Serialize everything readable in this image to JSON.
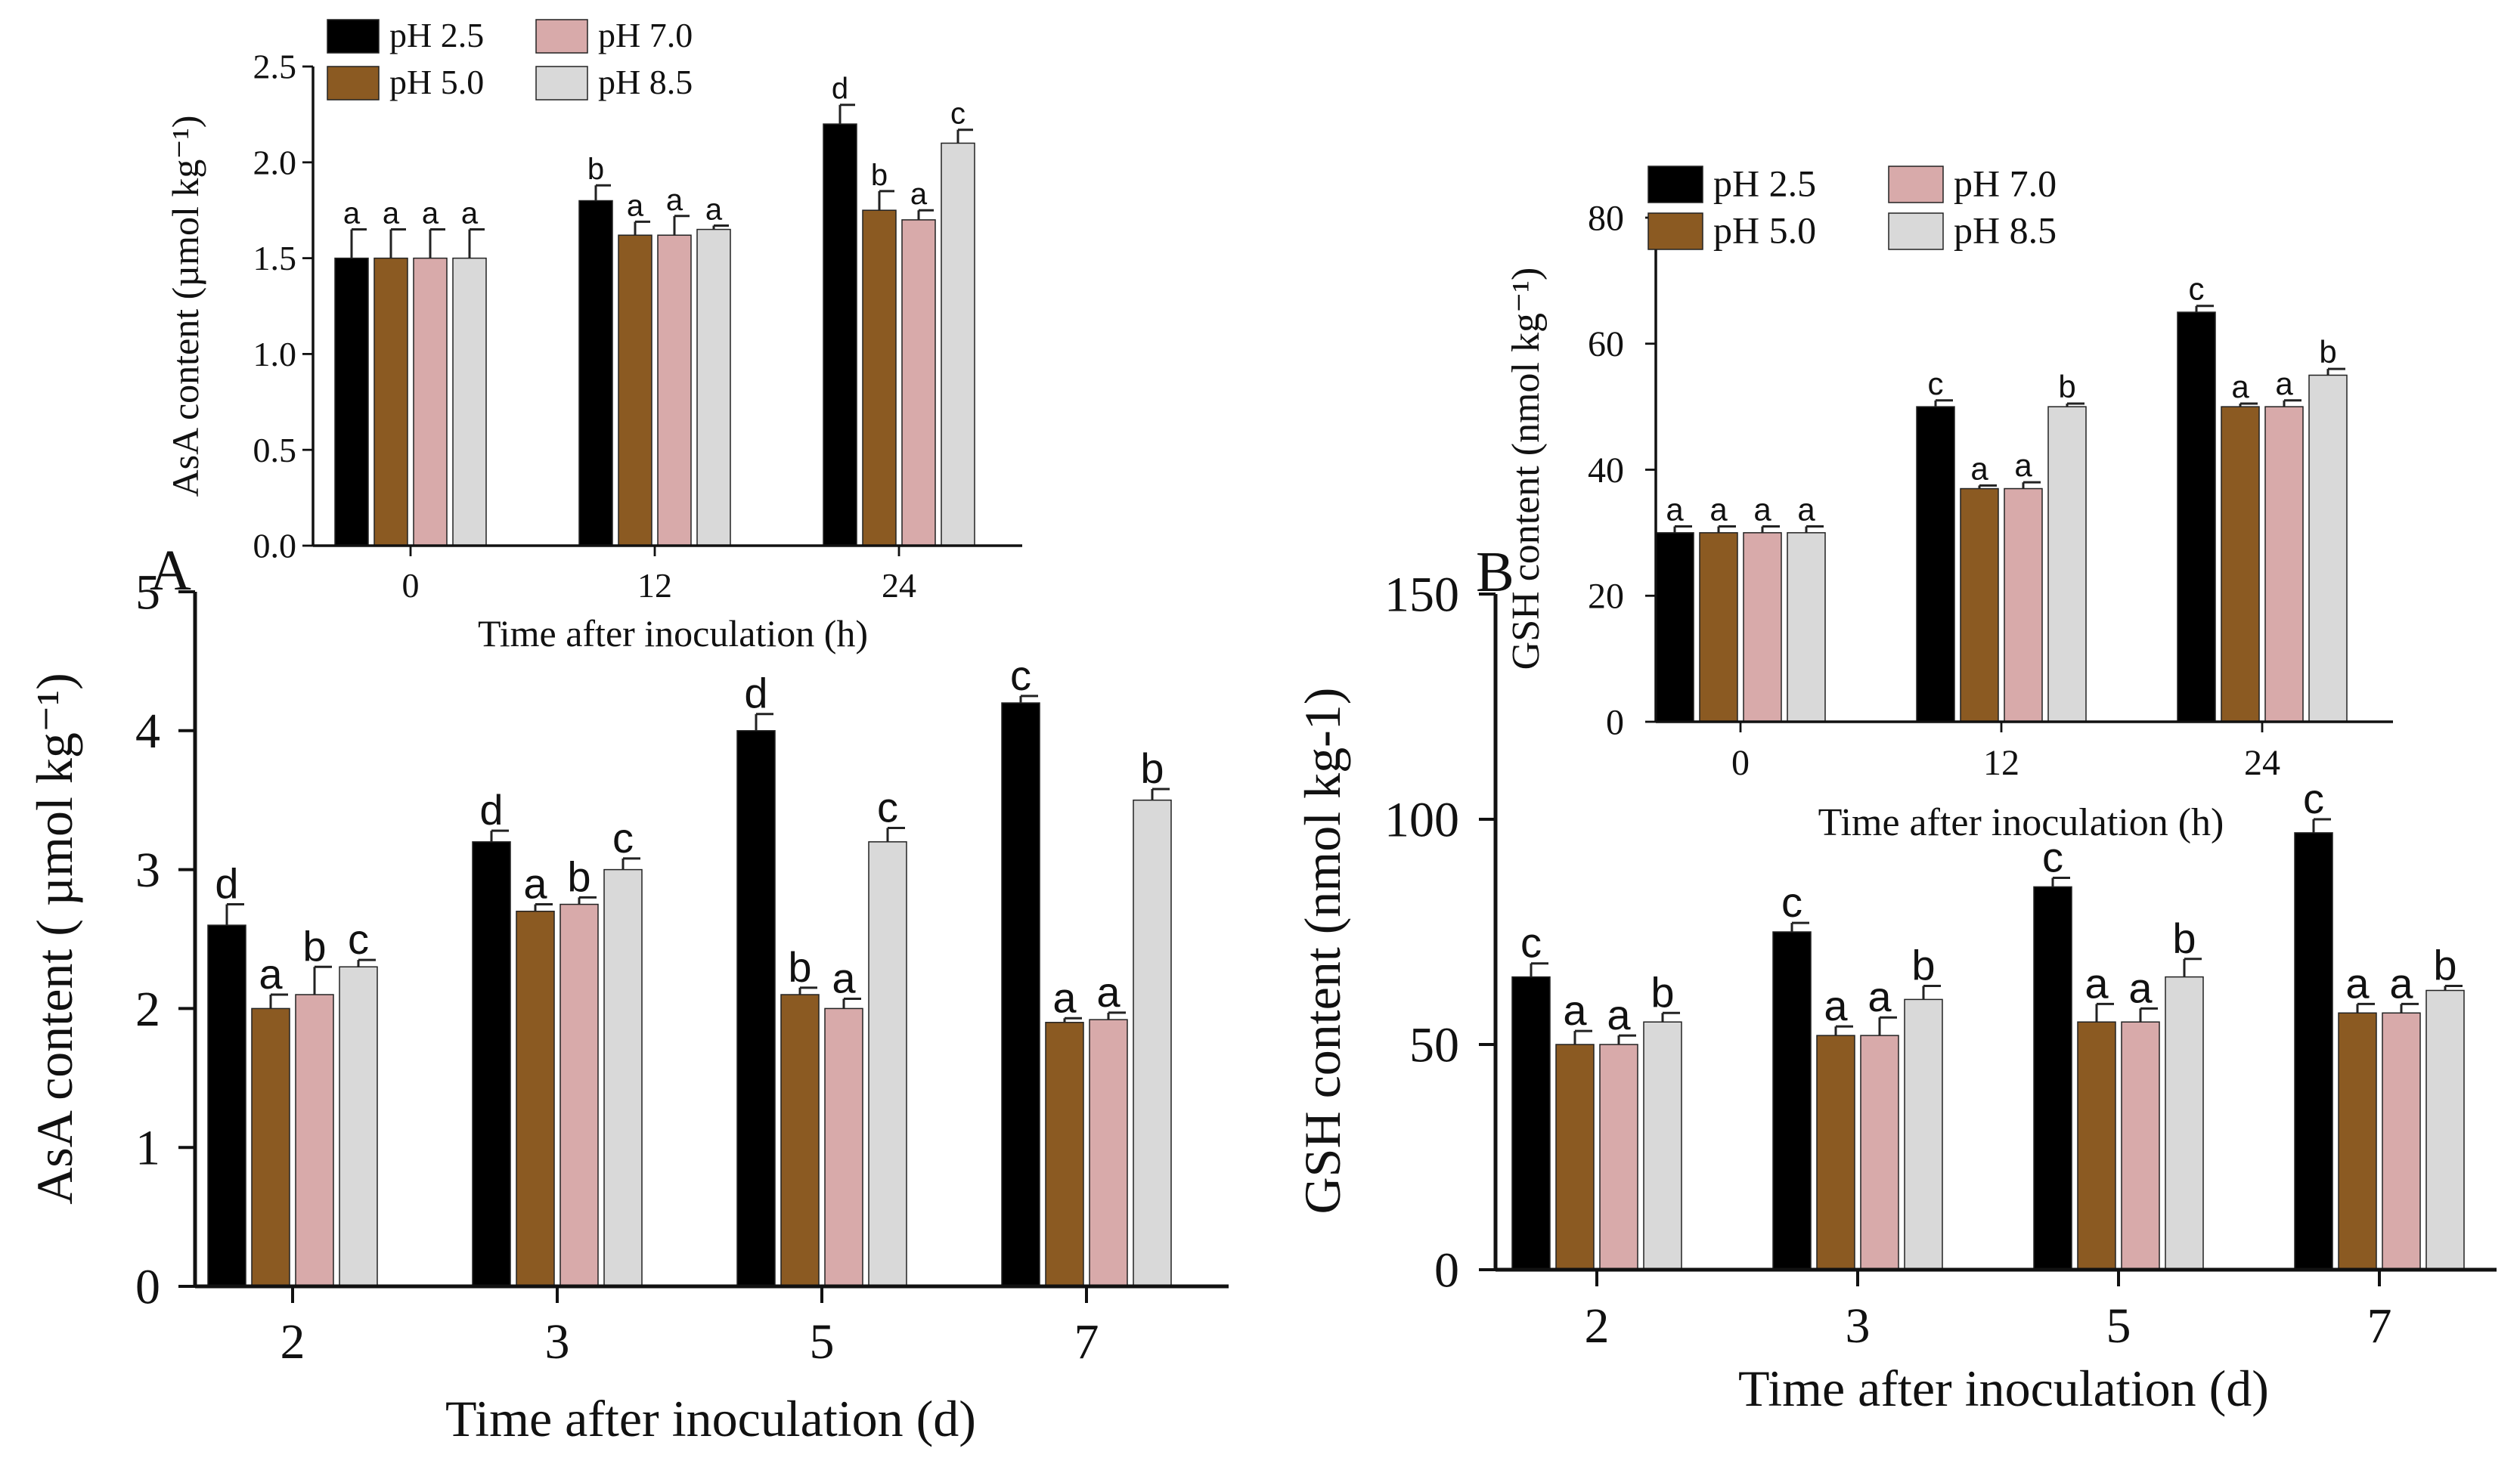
{
  "chart_data": [
    {
      "id": "A-main",
      "type": "bar",
      "panel_label": "A",
      "xlabel": "Time after inoculation (d)",
      "ylabel": "AsA content ( µmol kg⁻¹)",
      "categories": [
        "2",
        "3",
        "5",
        "7"
      ],
      "ylim": [
        0,
        5
      ],
      "yticks": [
        0,
        1,
        2,
        3,
        4,
        5
      ],
      "series": [
        {
          "name": "pH 2.5",
          "color": "#000000",
          "values": [
            2.6,
            3.2,
            4.0,
            4.2
          ],
          "errors": [
            0.15,
            0.08,
            0.12,
            0.05
          ],
          "letters": [
            "d",
            "d",
            "d",
            "c"
          ]
        },
        {
          "name": "pH 5.0",
          "color": "#8b5a22",
          "values": [
            2.0,
            2.7,
            2.1,
            1.9
          ],
          "errors": [
            0.1,
            0.05,
            0.05,
            0.03
          ],
          "letters": [
            "a",
            "a",
            "b",
            "a"
          ]
        },
        {
          "name": "pH 7.0",
          "color": "#d8aaaa",
          "values": [
            2.1,
            2.75,
            2.0,
            1.92
          ],
          "errors": [
            0.2,
            0.05,
            0.07,
            0.05
          ],
          "letters": [
            "b",
            "b",
            "a",
            "a"
          ]
        },
        {
          "name": "pH 8.5",
          "color": "#d9d9d9",
          "values": [
            2.3,
            3.0,
            3.2,
            3.5
          ],
          "errors": [
            0.05,
            0.08,
            0.1,
            0.08
          ],
          "letters": [
            "c",
            "c",
            "c",
            "b"
          ]
        }
      ]
    },
    {
      "id": "A-inset",
      "type": "bar",
      "xlabel": "Time after inoculation (h)",
      "ylabel": "AsA content (µmol kg⁻¹)",
      "categories": [
        "0",
        "12",
        "24"
      ],
      "ylim": [
        0,
        2.5
      ],
      "yticks": [
        "0.0",
        "0.5",
        "1.0",
        "1.5",
        "2.0",
        "2.5"
      ],
      "legend": "top-left",
      "series": [
        {
          "name": "pH 2.5",
          "color": "#000000",
          "values": [
            1.5,
            1.8,
            2.2
          ],
          "errors": [
            0.15,
            0.08,
            0.1
          ],
          "letters": [
            "a",
            "b",
            "d"
          ]
        },
        {
          "name": "pH 5.0",
          "color": "#8b5a22",
          "values": [
            1.5,
            1.62,
            1.75
          ],
          "errors": [
            0.15,
            0.07,
            0.1
          ],
          "letters": [
            "a",
            "a",
            "b"
          ]
        },
        {
          "name": "pH 7.0",
          "color": "#d8aaaa",
          "values": [
            1.5,
            1.62,
            1.7
          ],
          "errors": [
            0.15,
            0.1,
            0.05
          ],
          "letters": [
            "a",
            "a",
            "a"
          ]
        },
        {
          "name": "pH 8.5",
          "color": "#d9d9d9",
          "values": [
            1.5,
            1.65,
            2.1
          ],
          "errors": [
            0.15,
            0.02,
            0.07
          ],
          "letters": [
            "a",
            "a",
            "c"
          ]
        }
      ]
    },
    {
      "id": "B-main",
      "type": "bar",
      "panel_label": "B",
      "xlabel": "Time after inoculation (d)",
      "ylabel": "GSH content (nmol kg-1)",
      "categories": [
        "2",
        "3",
        "5",
        "7"
      ],
      "ylim": [
        0,
        150
      ],
      "yticks": [
        0,
        50,
        100,
        150
      ],
      "series": [
        {
          "name": "pH 2.5",
          "color": "#000000",
          "values": [
            65,
            75,
            85,
            97
          ],
          "errors": [
            3,
            2,
            2,
            3
          ],
          "letters": [
            "c",
            "c",
            "c",
            "c"
          ]
        },
        {
          "name": "pH 5.0",
          "color": "#8b5a22",
          "values": [
            50,
            52,
            55,
            57
          ],
          "errors": [
            3,
            2,
            4,
            2
          ],
          "letters": [
            "a",
            "a",
            "a",
            "a"
          ]
        },
        {
          "name": "pH 7.0",
          "color": "#d8aaaa",
          "values": [
            50,
            52,
            55,
            57
          ],
          "errors": [
            2,
            4,
            3,
            2
          ],
          "letters": [
            "a",
            "a",
            "a",
            "a"
          ]
        },
        {
          "name": "pH 8.5",
          "color": "#d9d9d9",
          "values": [
            55,
            60,
            65,
            62
          ],
          "errors": [
            2,
            3,
            4,
            1
          ],
          "letters": [
            "b",
            "b",
            "b",
            "b"
          ]
        }
      ]
    },
    {
      "id": "B-inset",
      "type": "bar",
      "xlabel": "Time after inoculation (h)",
      "ylabel": "GSH content (nmol kg⁻¹)",
      "categories": [
        "0",
        "12",
        "24"
      ],
      "ylim": [
        0,
        80
      ],
      "yticks": [
        0,
        20,
        40,
        60,
        80
      ],
      "legend": "top-left",
      "series": [
        {
          "name": "pH 2.5",
          "color": "#000000",
          "values": [
            30,
            50,
            65
          ],
          "errors": [
            1,
            1,
            1
          ],
          "letters": [
            "a",
            "c",
            "c"
          ]
        },
        {
          "name": "pH 5.0",
          "color": "#8b5a22",
          "values": [
            30,
            37,
            50
          ],
          "errors": [
            1,
            0.5,
            0.5
          ],
          "letters": [
            "a",
            "a",
            "a"
          ]
        },
        {
          "name": "pH 7.0",
          "color": "#d8aaaa",
          "values": [
            30,
            37,
            50
          ],
          "errors": [
            1,
            1,
            1
          ],
          "letters": [
            "a",
            "a",
            "a"
          ]
        },
        {
          "name": "pH 8.5",
          "color": "#d9d9d9",
          "values": [
            30,
            50,
            55
          ],
          "errors": [
            1,
            0.5,
            1
          ],
          "letters": [
            "a",
            "b",
            "b"
          ]
        }
      ]
    }
  ]
}
